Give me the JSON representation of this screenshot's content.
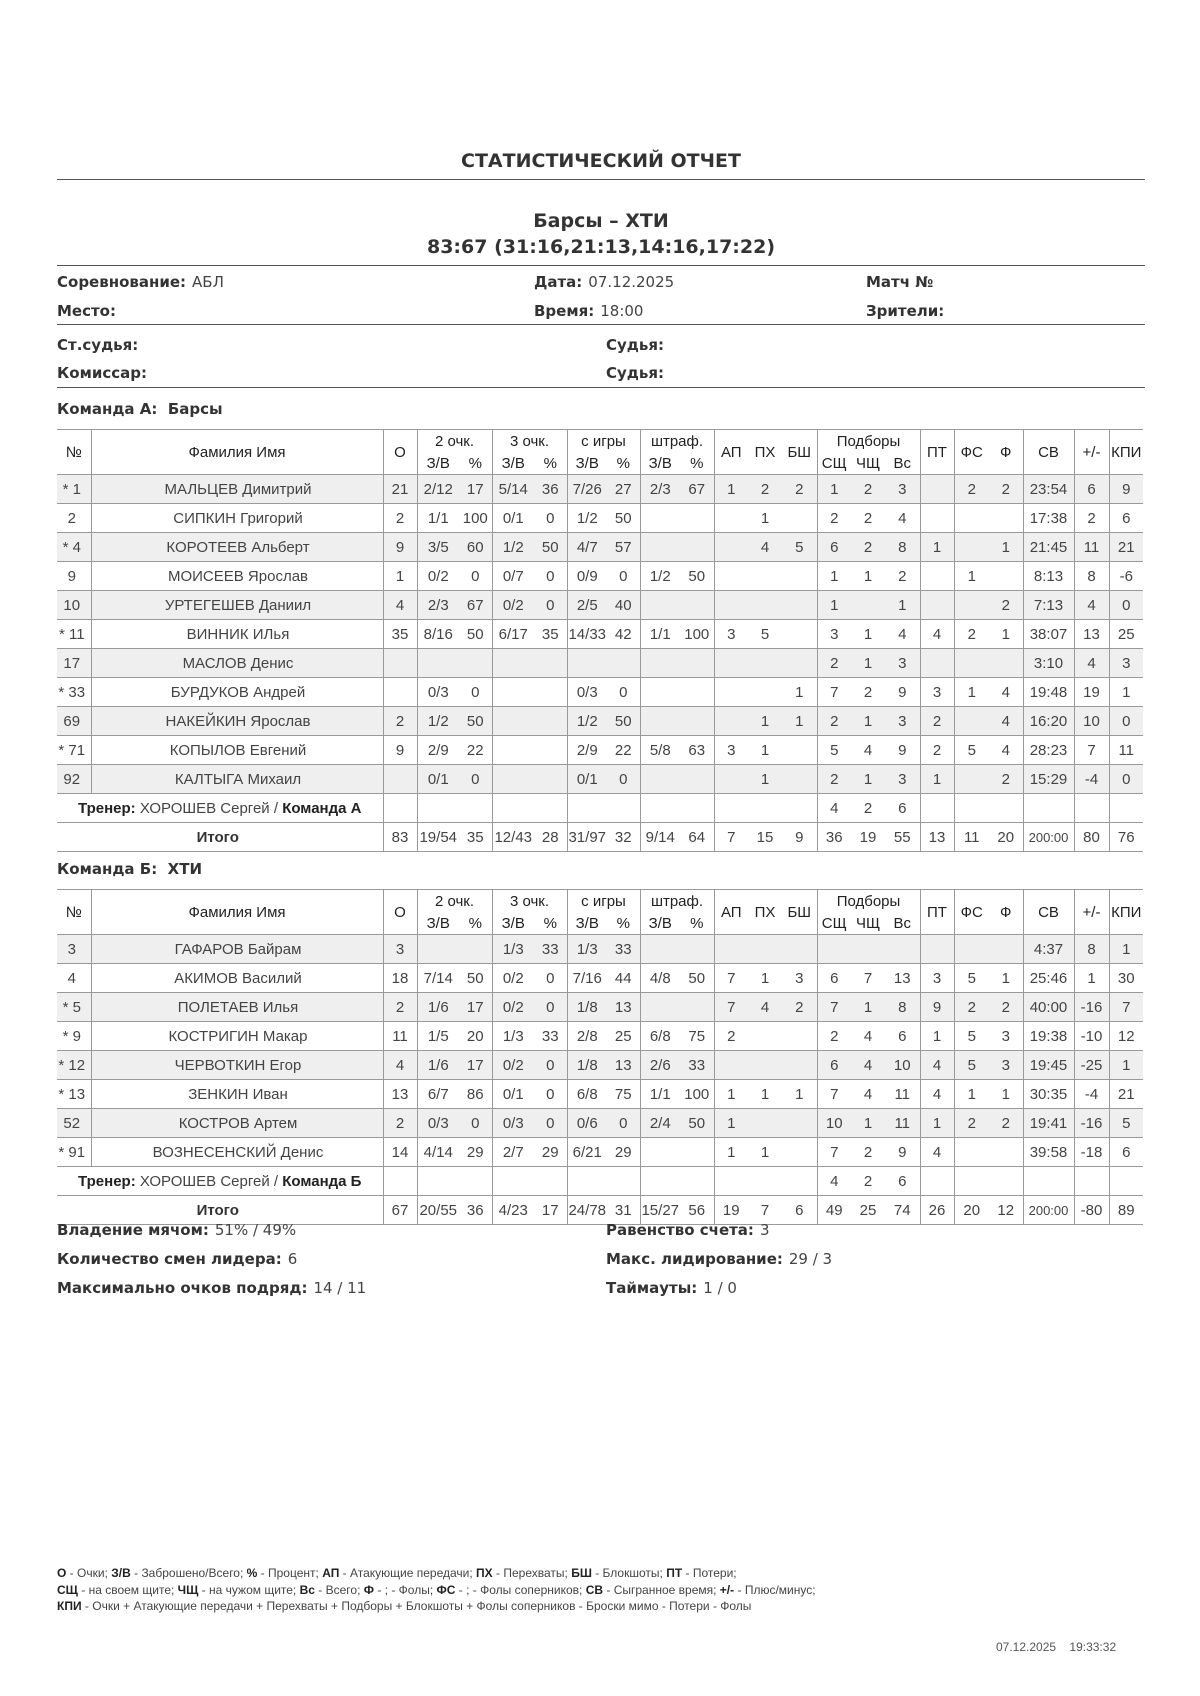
{
  "report_title": "СТАТИСТИЧЕСКИЙ ОТЧЕТ",
  "match": {
    "teams": "Барсы  – ХТИ",
    "score": "83:67 (31:16,21:13,14:16,17:22)"
  },
  "info": {
    "competition_label": "Соревнование:",
    "competition": "АБЛ",
    "date_label": "Дата:",
    "date": "07.12.2025",
    "match_no_label": "Матч №",
    "place_label": "Место:",
    "time_label": "Время:",
    "time": "18:00",
    "spectators_label": "Зрители:",
    "chief_referee_label": "Ст.судья:",
    "referee1_label": "Судья:",
    "commissioner_label": "Комиссар:",
    "referee2_label": "Судья:"
  },
  "headers": {
    "num": "№",
    "name": "Фамилия Имя",
    "pts": "О",
    "two": "2 очк.",
    "three": "3 очк.",
    "fg": "с игры",
    "ft": "штраф.",
    "made": "З/В",
    "pct": "%",
    "ast": "АП",
    "stl": "ПХ",
    "blk": "БШ",
    "reb": "Подборы",
    "dreb": "СЩ",
    "oreb": "ЧЩ",
    "treb": "Вс",
    "to": "ПТ",
    "fd": "ФС",
    "pf": "Ф",
    "min": "СВ",
    "pm": "+/-",
    "eff": "КПИ"
  },
  "teams": [
    {
      "label": "Команда А:",
      "name": "Барсы",
      "players": [
        [
          "*",
          "1",
          "МАЛЬЦЕВ Димитрий",
          "21",
          "2/12",
          "17",
          "5/14",
          "36",
          "7/26",
          "27",
          "2/3",
          "67",
          "1",
          "2",
          "2",
          "1",
          "2",
          "3",
          "",
          "2",
          "2",
          "23:54",
          "6",
          "9"
        ],
        [
          "",
          "2",
          "СИПКИН Григорий",
          "2",
          "1/1",
          "100",
          "0/1",
          "0",
          "1/2",
          "50",
          "",
          "",
          "",
          "1",
          "",
          "2",
          "2",
          "4",
          "",
          "",
          "",
          "17:38",
          "2",
          "6"
        ],
        [
          "*",
          "4",
          "КОРОТЕЕВ Альберт",
          "9",
          "3/5",
          "60",
          "1/2",
          "50",
          "4/7",
          "57",
          "",
          "",
          "",
          "4",
          "5",
          "6",
          "2",
          "8",
          "1",
          "",
          "1",
          "21:45",
          "11",
          "21"
        ],
        [
          "",
          "9",
          "МОИСЕЕВ Ярослав",
          "1",
          "0/2",
          "0",
          "0/7",
          "0",
          "0/9",
          "0",
          "1/2",
          "50",
          "",
          "",
          "",
          "1",
          "1",
          "2",
          "",
          "1",
          "",
          "8:13",
          "8",
          "-6"
        ],
        [
          "",
          "10",
          "УРТЕГЕШЕВ Даниил",
          "4",
          "2/3",
          "67",
          "0/2",
          "0",
          "2/5",
          "40",
          "",
          "",
          "",
          "",
          "",
          "1",
          "",
          "1",
          "",
          "",
          "2",
          "7:13",
          "4",
          "0"
        ],
        [
          "*",
          "11",
          "ВИННИК ИЛья",
          "35",
          "8/16",
          "50",
          "6/17",
          "35",
          "14/33",
          "42",
          "1/1",
          "100",
          "3",
          "5",
          "",
          "3",
          "1",
          "4",
          "4",
          "2",
          "1",
          "38:07",
          "13",
          "25"
        ],
        [
          "",
          "17",
          "МАСЛОВ Денис",
          "",
          "",
          "",
          "",
          "",
          "",
          "",
          "",
          "",
          "",
          "",
          "",
          "2",
          "1",
          "3",
          "",
          "",
          "",
          "3:10",
          "4",
          "3"
        ],
        [
          "*",
          "33",
          "БУРДУКОВ Андрей",
          "",
          "0/3",
          "0",
          "",
          "",
          "0/3",
          "0",
          "",
          "",
          "",
          "",
          "1",
          "7",
          "2",
          "9",
          "3",
          "1",
          "4",
          "19:48",
          "19",
          "1"
        ],
        [
          "",
          "69",
          "НАКЕЙКИН Ярослав",
          "2",
          "1/2",
          "50",
          "",
          "",
          "1/2",
          "50",
          "",
          "",
          "",
          "1",
          "1",
          "2",
          "1",
          "3",
          "2",
          "",
          "4",
          "16:20",
          "10",
          "0"
        ],
        [
          "*",
          "71",
          "КОПЫЛОВ Евгений",
          "9",
          "2/9",
          "22",
          "",
          "",
          "2/9",
          "22",
          "5/8",
          "63",
          "3",
          "1",
          "",
          "5",
          "4",
          "9",
          "2",
          "5",
          "4",
          "28:23",
          "7",
          "11"
        ],
        [
          "",
          "92",
          "КАЛТЫГА Михаил",
          "",
          "0/1",
          "0",
          "",
          "",
          "0/1",
          "0",
          "",
          "",
          "",
          "1",
          "",
          "2",
          "1",
          "3",
          "1",
          "",
          "2",
          "15:29",
          "-4",
          "0"
        ]
      ],
      "coach": {
        "label": "Тренер:",
        "name": "ХОРОШЕВ Сергей",
        "team_label": "Команда А",
        "stats": [
          "",
          "",
          "",
          "",
          "",
          "",
          "",
          "",
          "",
          "",
          "",
          "",
          "4",
          "2",
          "6",
          "",
          "",
          "",
          "",
          "",
          ""
        ]
      },
      "total": {
        "label": "Итого",
        "stats": [
          "83",
          "19/54",
          "35",
          "12/43",
          "28",
          "31/97",
          "32",
          "9/14",
          "64",
          "7",
          "15",
          "9",
          "36",
          "19",
          "55",
          "13",
          "11",
          "20",
          "200:00",
          "80",
          "76"
        ]
      }
    },
    {
      "label": "Команда Б:",
      "name": "ХТИ",
      "players": [
        [
          "",
          "3",
          "ГАФАРОВ Байрам",
          "3",
          "",
          "",
          "1/3",
          "33",
          "1/3",
          "33",
          "",
          "",
          "",
          "",
          "",
          "",
          "",
          "",
          "",
          "",
          "",
          "4:37",
          "8",
          "1"
        ],
        [
          "",
          "4",
          "АКИМОВ Василий",
          "18",
          "7/14",
          "50",
          "0/2",
          "0",
          "7/16",
          "44",
          "4/8",
          "50",
          "7",
          "1",
          "3",
          "6",
          "7",
          "13",
          "3",
          "5",
          "1",
          "25:46",
          "1",
          "30"
        ],
        [
          "*",
          "5",
          "ПОЛЕТАЕВ Илья",
          "2",
          "1/6",
          "17",
          "0/2",
          "0",
          "1/8",
          "13",
          "",
          "",
          "7",
          "4",
          "2",
          "7",
          "1",
          "8",
          "9",
          "2",
          "2",
          "40:00",
          "-16",
          "7"
        ],
        [
          "*",
          "9",
          "КОСТРИГИН Макар",
          "11",
          "1/5",
          "20",
          "1/3",
          "33",
          "2/8",
          "25",
          "6/8",
          "75",
          "2",
          "",
          "",
          "2",
          "4",
          "6",
          "1",
          "5",
          "3",
          "19:38",
          "-10",
          "12"
        ],
        [
          "*",
          "12",
          "ЧЕРВОТКИН Егор",
          "4",
          "1/6",
          "17",
          "0/2",
          "0",
          "1/8",
          "13",
          "2/6",
          "33",
          "",
          "",
          "",
          "6",
          "4",
          "10",
          "4",
          "5",
          "3",
          "19:45",
          "-25",
          "1"
        ],
        [
          "*",
          "13",
          "ЗЕНКИН Иван",
          "13",
          "6/7",
          "86",
          "0/1",
          "0",
          "6/8",
          "75",
          "1/1",
          "100",
          "1",
          "1",
          "1",
          "7",
          "4",
          "11",
          "4",
          "1",
          "1",
          "30:35",
          "-4",
          "21"
        ],
        [
          "",
          "52",
          "КОСТРОВ Артем",
          "2",
          "0/3",
          "0",
          "0/3",
          "0",
          "0/6",
          "0",
          "2/4",
          "50",
          "1",
          "",
          "",
          "10",
          "1",
          "11",
          "1",
          "2",
          "2",
          "19:41",
          "-16",
          "5"
        ],
        [
          "*",
          "91",
          "ВОЗНЕСЕНСКИЙ Денис",
          "14",
          "4/14",
          "29",
          "2/7",
          "29",
          "6/21",
          "29",
          "",
          "",
          "1",
          "1",
          "",
          "7",
          "2",
          "9",
          "4",
          "",
          "",
          "39:58",
          "-18",
          "6"
        ]
      ],
      "coach": {
        "label": "Тренер:",
        "name": "ХОРОШЕВ Сергей",
        "team_label": "Команда Б",
        "stats": [
          "",
          "",
          "",
          "",
          "",
          "",
          "",
          "",
          "",
          "",
          "",
          "",
          "4",
          "2",
          "6",
          "",
          "",
          "",
          "",
          "",
          ""
        ]
      },
      "total": {
        "label": "Итого",
        "stats": [
          "67",
          "20/55",
          "36",
          "4/23",
          "17",
          "24/78",
          "31",
          "15/27",
          "56",
          "19",
          "7",
          "6",
          "49",
          "25",
          "74",
          "26",
          "20",
          "12",
          "200:00",
          "-80",
          "89"
        ]
      }
    }
  ],
  "summary": {
    "possession_label": "Владение мячом:",
    "possession": "51% / 49%",
    "lead_changes_label": "Количество смен лидера:",
    "lead_changes": "6",
    "max_run_label": "Максимально очков подряд:",
    "max_run": "14 / 11",
    "ties_label": "Равенство счета:",
    "ties": "3",
    "max_lead_label": "Макс. лидирование:",
    "max_lead": "29 / 3",
    "timeouts_label": "Таймауты:",
    "timeouts": "1 / 0"
  },
  "legend": [
    [
      [
        "О",
        "Очки; "
      ],
      [
        "З/В",
        "Заброшено/Всего; "
      ],
      [
        "%",
        "Процент; "
      ],
      [
        "АП",
        "Атакующие передачи; "
      ],
      [
        "ПХ",
        "Перехваты; "
      ],
      [
        "БШ",
        "Блокшоты; "
      ],
      [
        "ПТ",
        "Потери;"
      ]
    ],
    [
      [
        "СЩ",
        "на своем щите; "
      ],
      [
        "ЧЩ",
        "на чужом щите; "
      ],
      [
        "Вс",
        "Всего; "
      ],
      [
        "Ф",
        "; - Фолы; "
      ],
      [
        "ФС",
        "; - Фолы соперников; "
      ],
      [
        "СВ",
        "Сыгранное время; "
      ],
      [
        "+/-",
        "Плюс/минус;"
      ]
    ],
    [
      [
        "КПИ",
        "Очки + Атакующие передачи + Перехваты + Подборы + Блокшоты + Фолы соперников - Броски мимо - Потери - Фолы"
      ]
    ]
  ],
  "printed": {
    "date": "07.12.2025",
    "time": "19:33:32"
  }
}
